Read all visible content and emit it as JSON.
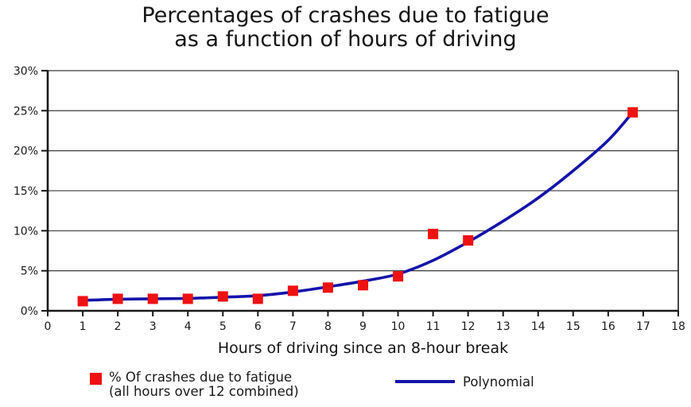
{
  "chart_data": {
    "type": "scatter",
    "title": "Percentages of crashes due to fatigue as a function of hours of driving",
    "title_lines": [
      "Percentages of crashes due to fatigue",
      "as a function of hours of driving"
    ],
    "xlabel": "Hours of driving since an 8-hour break",
    "ylabel": "",
    "xlim": [
      0,
      18
    ],
    "ylim": [
      0,
      30
    ],
    "x_tick_values": [
      0,
      1,
      2,
      3,
      4,
      5,
      6,
      7,
      8,
      9,
      10,
      11,
      12,
      13,
      14,
      15,
      16,
      17,
      18
    ],
    "x_tick_labels": [
      "0",
      "1",
      "2",
      "3",
      "4",
      "5",
      "6",
      "7",
      "8",
      "9",
      "10",
      "11",
      "12",
      "13",
      "14",
      "15",
      "16",
      "17",
      "18"
    ],
    "y_tick_values": [
      0,
      5,
      10,
      15,
      20,
      25,
      30
    ],
    "y_tick_labels": [
      "0%",
      "5%",
      "10%",
      "15%",
      "20%",
      "25%",
      "30%"
    ],
    "grid": "horizontal-only",
    "legend_position": "bottom",
    "series": [
      {
        "name": "% Of crashes due to fatigue (all hours over 12 combined)",
        "type": "scatter",
        "marker": "square",
        "color": "#ee1111",
        "points": [
          [
            1,
            1.2
          ],
          [
            2,
            1.5
          ],
          [
            3,
            1.5
          ],
          [
            4,
            1.5
          ],
          [
            5,
            1.8
          ],
          [
            6,
            1.5
          ],
          [
            7,
            2.5
          ],
          [
            8,
            2.9
          ],
          [
            9,
            3.2
          ],
          [
            10,
            4.3
          ],
          [
            11,
            9.6
          ],
          [
            12,
            8.8
          ],
          [
            16.7,
            24.8
          ]
        ]
      },
      {
        "name": "Polynomial",
        "type": "line",
        "color": "#1414aa",
        "points": [
          [
            1,
            1.3
          ],
          [
            2,
            1.45
          ],
          [
            3,
            1.5
          ],
          [
            4,
            1.55
          ],
          [
            5,
            1.7
          ],
          [
            6,
            1.9
          ],
          [
            7,
            2.35
          ],
          [
            8,
            3.0
          ],
          [
            9,
            3.7
          ],
          [
            10,
            4.6
          ],
          [
            11,
            6.3
          ],
          [
            12,
            8.6
          ],
          [
            13,
            11.2
          ],
          [
            14,
            14.1
          ],
          [
            15,
            17.5
          ],
          [
            16,
            21.3
          ],
          [
            16.7,
            24.8
          ]
        ]
      }
    ],
    "colors": {
      "axis": "#1a1a1a",
      "grid": "#3a3a3a",
      "background": "#ffffff",
      "marker_red": "#ee1111",
      "line_blue": "#1414aa"
    }
  },
  "legend": {
    "series1_line1": "% Of crashes due to fatigue",
    "series1_line2": "(all hours over 12 combined)",
    "series2_label": "Polynomial"
  }
}
